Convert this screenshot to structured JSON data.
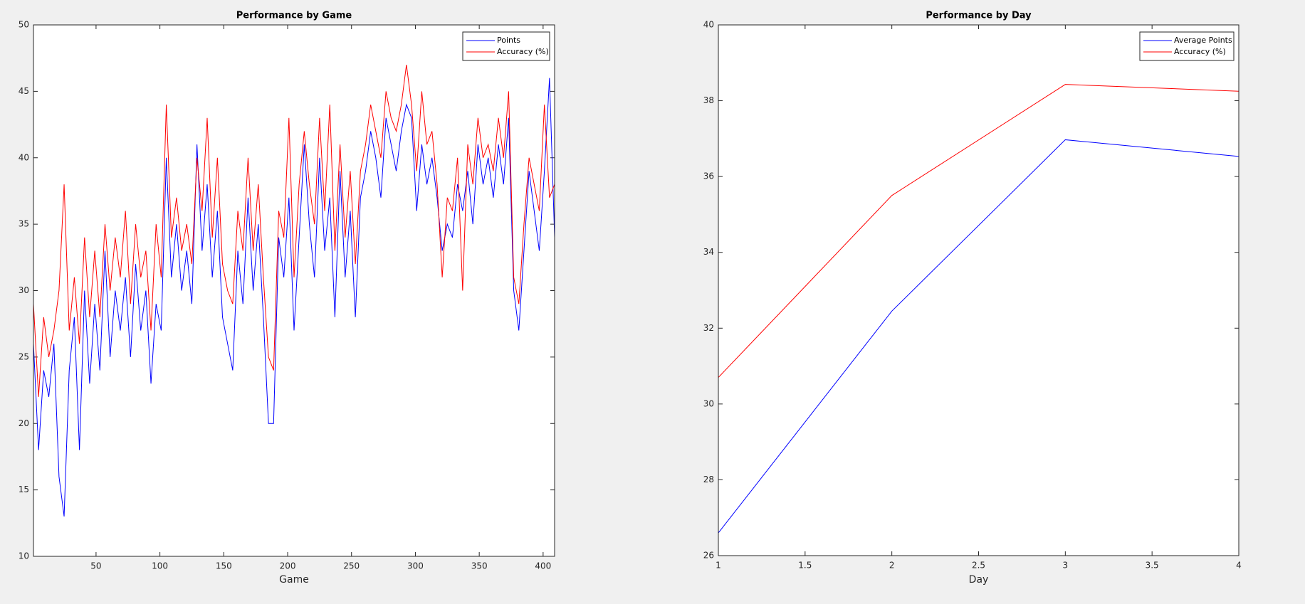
{
  "chart_data": [
    {
      "type": "line",
      "title": "Performance by Game",
      "x_label": "Game",
      "x": [
        1,
        5,
        9,
        13,
        17,
        21,
        25,
        29,
        33,
        37,
        41,
        45,
        49,
        53,
        57,
        61,
        65,
        69,
        73,
        77,
        81,
        85,
        89,
        93,
        97,
        101,
        105,
        109,
        113,
        117,
        121,
        125,
        129,
        133,
        137,
        141,
        145,
        149,
        153,
        157,
        161,
        165,
        169,
        173,
        177,
        181,
        185,
        189,
        193,
        197,
        201,
        205,
        209,
        213,
        217,
        221,
        225,
        229,
        233,
        237,
        241,
        245,
        249,
        253,
        257,
        261,
        265,
        269,
        273,
        277,
        281,
        285,
        289,
        293,
        297,
        301,
        305,
        309,
        313,
        317,
        321,
        325,
        329,
        333,
        337,
        341,
        345,
        349,
        353,
        357,
        361,
        365,
        369,
        373,
        377,
        381,
        385,
        389,
        393,
        397,
        401,
        405,
        409
      ],
      "series": [
        {
          "name": "Points",
          "color": "#0000ff",
          "values": [
            26,
            18,
            24,
            22,
            26,
            16,
            13,
            24,
            28,
            18,
            30,
            23,
            29,
            24,
            33,
            25,
            30,
            27,
            31,
            25,
            32,
            27,
            30,
            23,
            29,
            27,
            40,
            31,
            35,
            30,
            33,
            29,
            41,
            33,
            38,
            31,
            36,
            28,
            26,
            24,
            33,
            29,
            37,
            30,
            35,
            28,
            20,
            20,
            34,
            31,
            37,
            27,
            34,
            41,
            35,
            31,
            40,
            33,
            37,
            28,
            39,
            31,
            36,
            28,
            37,
            39,
            42,
            40,
            37,
            43,
            41,
            39,
            42,
            44,
            43,
            36,
            41,
            38,
            40,
            37,
            33,
            35,
            34,
            38,
            36,
            39,
            35,
            41,
            38,
            40,
            37,
            41,
            38,
            43,
            30,
            27,
            33,
            39,
            36,
            33,
            39,
            46,
            34
          ]
        },
        {
          "name": "Accuracy (%)",
          "color": "#ff0000",
          "values": [
            29,
            22,
            28,
            25,
            27,
            30,
            38,
            27,
            31,
            26,
            34,
            28,
            33,
            28,
            35,
            30,
            34,
            31,
            36,
            29,
            35,
            31,
            33,
            27,
            35,
            31,
            44,
            34,
            37,
            33,
            35,
            32,
            40,
            36,
            43,
            34,
            40,
            32,
            30,
            29,
            36,
            33,
            40,
            33,
            38,
            31,
            25,
            24,
            36,
            34,
            43,
            31,
            38,
            42,
            38,
            35,
            43,
            36,
            44,
            33,
            41,
            34,
            39,
            32,
            39,
            41,
            44,
            42,
            40,
            45,
            43,
            42,
            44,
            47,
            44,
            39,
            45,
            41,
            42,
            38,
            31,
            37,
            36,
            40,
            30,
            41,
            38,
            43,
            40,
            41,
            39,
            43,
            40,
            45,
            31,
            29,
            35,
            40,
            38,
            36,
            44,
            37,
            38
          ]
        }
      ],
      "xlim": [
        1,
        409
      ],
      "xticks": [
        50,
        100,
        150,
        200,
        250,
        300,
        350,
        400
      ],
      "ylim": [
        10,
        50
      ],
      "yticks": [
        10,
        15,
        20,
        25,
        30,
        35,
        40,
        45,
        50
      ],
      "legend": "northeast"
    },
    {
      "type": "line",
      "title": "Performance by Day",
      "x_label": "Day",
      "x": [
        1,
        2,
        3,
        4
      ],
      "series": [
        {
          "name": "Average Points",
          "color": "#0000ff",
          "values": [
            26.6,
            32.45,
            36.97,
            36.53
          ]
        },
        {
          "name": "Accuracy (%)",
          "color": "#ff0000",
          "values": [
            30.7,
            35.5,
            38.43,
            38.25
          ]
        }
      ],
      "xlim": [
        1,
        4
      ],
      "xticks": [
        1,
        1.5,
        2,
        2.5,
        3,
        3.5,
        4
      ],
      "ylim": [
        26,
        40
      ],
      "yticks": [
        26,
        28,
        30,
        32,
        34,
        36,
        38,
        40
      ],
      "legend": "northeast"
    }
  ]
}
